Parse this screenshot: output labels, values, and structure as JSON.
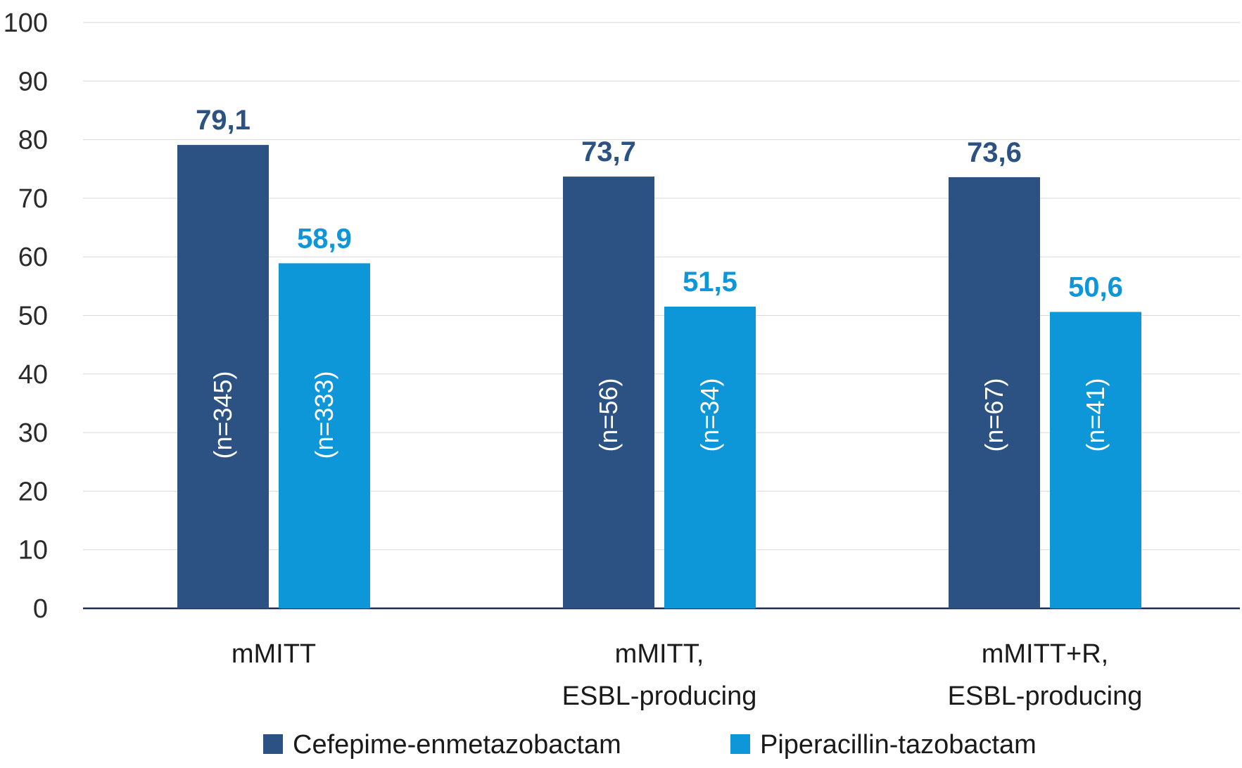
{
  "chart_data": {
    "type": "bar",
    "categories": [
      [
        "mMITT"
      ],
      [
        "mMITT,",
        "ESBL-producing"
      ],
      [
        "mMITT+R,",
        "ESBL-producing"
      ]
    ],
    "series": [
      {
        "name": "Cefepime-enmetazobactam",
        "color": "#2b5283",
        "values": [
          79.1,
          73.7,
          73.6
        ],
        "value_labels": [
          "79,1",
          "73,7",
          "73,6"
        ],
        "n_labels": [
          "(n=345)",
          "(n=56)",
          "(n=67)"
        ]
      },
      {
        "name": "Piperacillin-tazobactam",
        "color": "#0d96d8",
        "values": [
          58.9,
          51.5,
          50.6
        ],
        "value_labels": [
          "58,9",
          "51,5",
          "50,6"
        ],
        "n_labels": [
          "(n=333)",
          "(n=34)",
          "(n=41)"
        ]
      }
    ],
    "ylim": [
      0,
      100
    ],
    "yticks": [
      0,
      10,
      20,
      30,
      40,
      50,
      60,
      70,
      80,
      90,
      100
    ],
    "grid": true,
    "legend": "bottom"
  }
}
